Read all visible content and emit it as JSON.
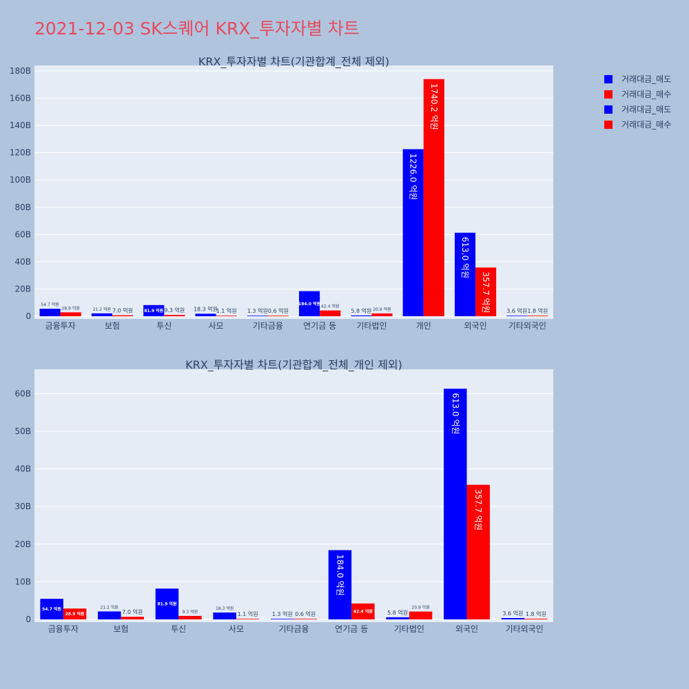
{
  "page": {
    "title": "2021-12-03 SK스퀘어 KRX_투자자별 차트"
  },
  "colors": {
    "sell": "#0000ff",
    "buy": "#ff0000",
    "plot_bg": "#e5ecf6",
    "page_bg": "#b0c4de",
    "title": "#e8495c",
    "text": "#2a3f5f"
  },
  "legend": [
    {
      "label": "거래대금_매도",
      "color": "#0000ff"
    },
    {
      "label": "거래대금_매수",
      "color": "#ff0000"
    },
    {
      "label": "거래대금_매도",
      "color": "#0000ff"
    },
    {
      "label": "거래대금_매수",
      "color": "#ff0000"
    }
  ],
  "chart_data": [
    {
      "type": "bar",
      "title": "KRX_투자자별 차트(기관합계_전체 제외)",
      "categories": [
        "금융투자",
        "보험",
        "투신",
        "사모",
        "기타금융",
        "연기금 등",
        "기타법인",
        "개인",
        "외국인",
        "기타외국인"
      ],
      "ylim": [
        0,
        180
      ],
      "yticks": [
        0,
        20,
        40,
        60,
        80,
        100,
        120,
        140,
        160,
        180
      ],
      "ytick_labels": [
        "0",
        "20B",
        "40B",
        "60B",
        "80B",
        "100B",
        "120B",
        "140B",
        "160B",
        "180B"
      ],
      "series": [
        {
          "name": "거래대금_매도",
          "color": "#0000ff",
          "values": [
            5.47,
            2.12,
            8.19,
            1.83,
            0.13,
            18.4,
            0.58,
            122.6,
            61.3,
            0.36
          ],
          "labels": [
            "54.7 억원",
            "21.2 억원",
            "81.9 억원",
            "18.3 억원",
            "1.3 억원",
            "184.0 억원",
            "5.8 억원",
            "1226.0 억원",
            "613.0 억원",
            "3.6 억원"
          ]
        },
        {
          "name": "거래대금_매수",
          "color": "#ff0000",
          "values": [
            2.89,
            0.7,
            0.93,
            0.11,
            0.06,
            4.24,
            2.09,
            174.02,
            35.77,
            0.18
          ],
          "labels": [
            "28.9 억원",
            "7.0 억원",
            "9.3 억원",
            "1.1 억원",
            "0.6 억원",
            "42.4 억원",
            "20.9 억원",
            "1740.2 억원",
            "357.7 억원",
            "1.8 억원"
          ]
        }
      ]
    },
    {
      "type": "bar",
      "title": "KRX_투자자별 차트(기관합계_전체_개인 제외)",
      "categories": [
        "금융투자",
        "보험",
        "투신",
        "사모",
        "기타금융",
        "연기금 등",
        "기타법인",
        "외국인",
        "기타외국인"
      ],
      "ylim": [
        0,
        65
      ],
      "yticks": [
        0,
        10,
        20,
        30,
        40,
        50,
        60
      ],
      "ytick_labels": [
        "0",
        "10B",
        "20B",
        "30B",
        "40B",
        "50B",
        "60B"
      ],
      "series": [
        {
          "name": "거래대금_매도",
          "color": "#0000ff",
          "values": [
            5.47,
            2.12,
            8.19,
            1.83,
            0.13,
            18.4,
            0.58,
            61.3,
            0.36
          ],
          "labels": [
            "54.7 억원",
            "21.2 억원",
            "81.9 억원",
            "18.3 억원",
            "1.3 억원",
            "184.0 억원",
            "5.8 억원",
            "613.0 억원",
            "3.6 억원"
          ]
        },
        {
          "name": "거래대금_매수",
          "color": "#ff0000",
          "values": [
            2.89,
            0.7,
            0.93,
            0.11,
            0.06,
            4.24,
            2.09,
            35.77,
            0.18
          ],
          "labels": [
            "28.9 억원",
            "7.0 억원",
            "9.3 억원",
            "1.1 억원",
            "0.6 억원",
            "42.4 억원",
            "20.9 억원",
            "357.7 억원",
            "1.8 억원"
          ]
        }
      ]
    }
  ]
}
